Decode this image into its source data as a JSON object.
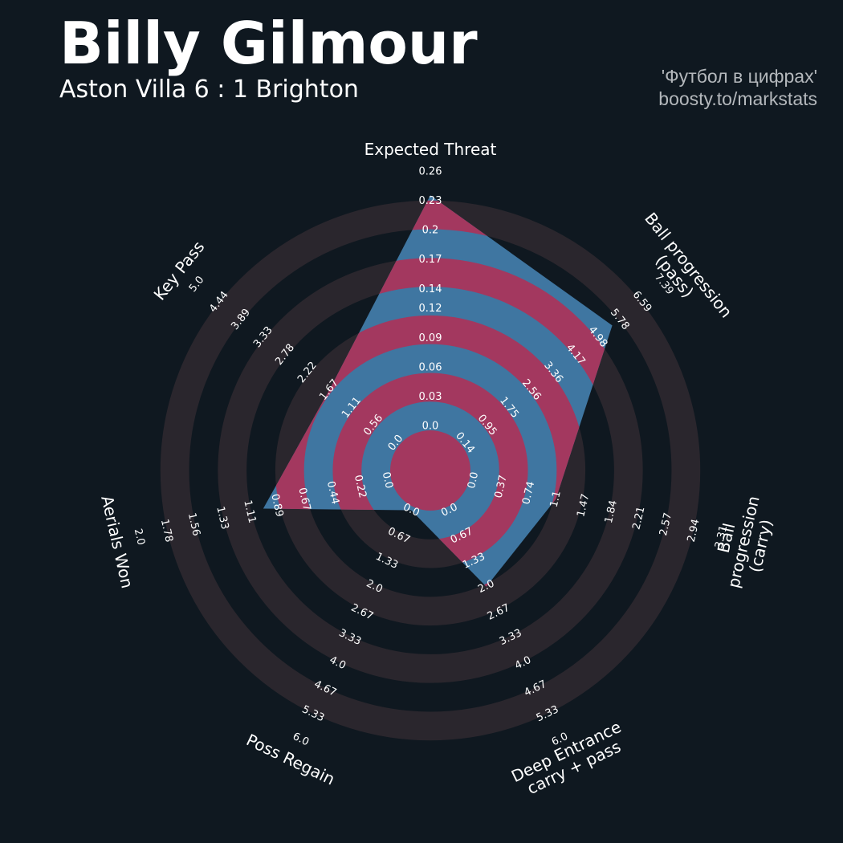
{
  "chart_data": {
    "type": "radar",
    "title": "Billy Gilmour",
    "subtitle": "Aston Villa 6 : 1 Brighton",
    "credits": [
      "'Футбол в цифрах'",
      "boosty.to/markstats"
    ],
    "color": "#3f76a1",
    "highlight_color": "#a3385f",
    "ring_color": "#2a262d",
    "params": [
      {
        "name": "Expected Threat",
        "lim": [
          0,
          0.26
        ],
        "ticks": [
          {
            "value": 0,
            "label": "0.0"
          },
          0.03,
          0.06,
          0.09,
          0.12,
          0.14,
          0.17,
          0.2,
          0.23,
          0.26
        ]
      },
      {
        "name": "Ball progression (pass)",
        "lim": [
          0.14,
          7.39
        ],
        "ticks": [
          0.14,
          0.95,
          1.75,
          2.56,
          3.36,
          4.17,
          4.98,
          5.78,
          6.59,
          7.39
        ]
      },
      {
        "name": "Ball progression (carry)",
        "lim": [
          0,
          3.31
        ],
        "ticks": [
          {
            "value": 0,
            "label": "0.0"
          },
          0.37,
          0.74,
          1.1,
          1.47,
          1.84,
          2.21,
          2.57,
          2.94,
          3.31
        ]
      },
      {
        "name": "Deep Entrance\ncarry + pass",
        "lim": [
          0,
          6
        ],
        "ticks": [
          {
            "value": 0,
            "label": "0.0"
          },
          0.67,
          1.33,
          {
            "value": 2,
            "label": "2.0"
          },
          2.67,
          3.33,
          {
            "value": 4,
            "label": "4.0"
          },
          4.67,
          5.33,
          {
            "value": 6,
            "label": "6.0"
          }
        ]
      },
      {
        "name": "Poss Regain",
        "lim": [
          0,
          6
        ],
        "ticks": [
          {
            "value": 0,
            "label": "0.0"
          },
          0.67,
          1.33,
          {
            "value": 2,
            "label": "2.0"
          },
          2.67,
          3.33,
          {
            "value": 4,
            "label": "4.0"
          },
          4.67,
          5.33,
          {
            "value": 6,
            "label": "6.0"
          }
        ]
      },
      {
        "name": "Aerials Won",
        "lim": [
          0,
          2
        ],
        "ticks": [
          {
            "value": 0,
            "label": "0.0"
          },
          0.22,
          0.44,
          0.67,
          0.89,
          1.11,
          1.33,
          1.56,
          1.78,
          {
            "value": 2,
            "label": "2.0"
          }
        ]
      },
      {
        "name": "Key Pass",
        "lim": [
          0,
          5
        ],
        "ticks": [
          {
            "value": 0,
            "label": "0.0"
          },
          0.56,
          1.11,
          1.67,
          2.22,
          2.78,
          3.33,
          3.89,
          4.44,
          {
            "value": 5,
            "label": "5.0"
          }
        ]
      }
    ],
    "values": [
      0.236,
      5.51,
      1.1,
      2,
      0,
      1,
      1.67
    ]
  }
}
